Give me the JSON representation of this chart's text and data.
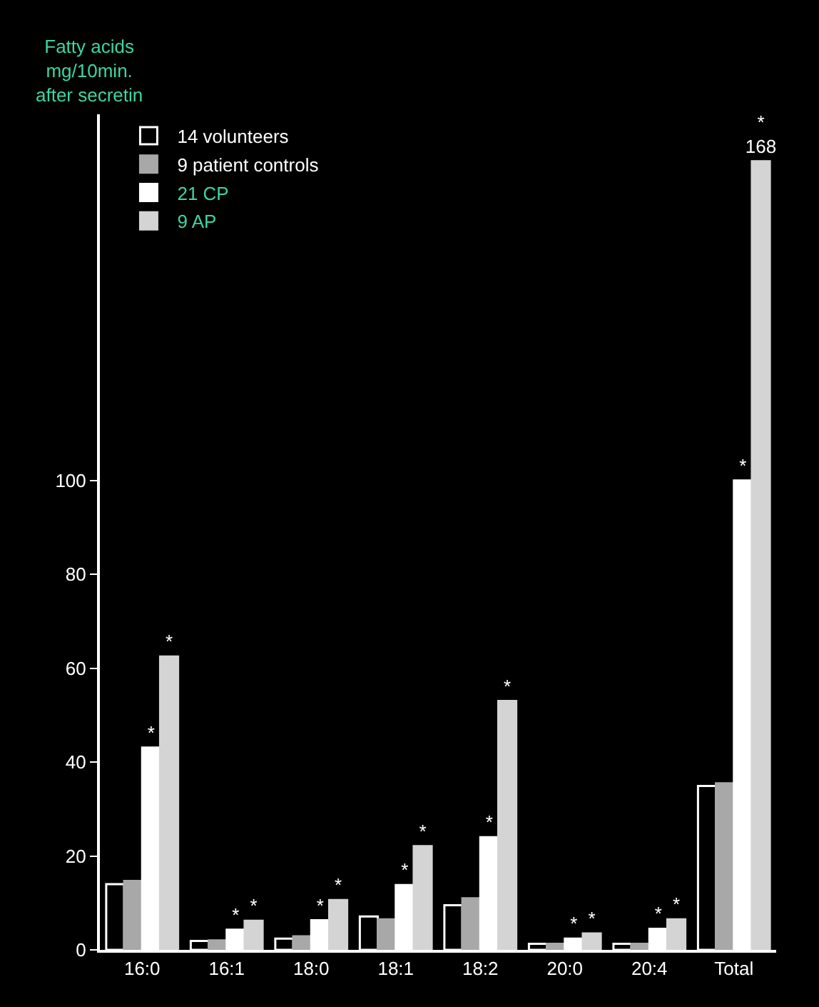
{
  "chart_data": {
    "type": "bar",
    "ylabel": "Fatty acids\nmg/10min.\nafter secretin",
    "categories": [
      "16:0",
      "16:1",
      "18:0",
      "18:1",
      "18:2",
      "20:0",
      "20:4",
      "Total"
    ],
    "series": [
      {
        "name": "14 volunteers",
        "color": "#ffffff",
        "values": [
          14.0,
          1.9,
          2.4,
          7.1,
          9.5,
          1.3,
          1.3,
          34.9
        ]
      },
      {
        "name": "9 patient controls",
        "color": "#a8a8a8",
        "values": [
          14.7,
          2.0,
          2.9,
          6.5,
          11.0,
          1.3,
          1.3,
          35.5
        ]
      },
      {
        "name": "21 CP",
        "color": "#ffffff",
        "values": [
          43.1,
          4.3,
          6.3,
          13.8,
          24.0,
          2.4,
          4.5,
          100
        ],
        "value_labels": [
          "*",
          "*",
          "*",
          "*",
          "*",
          "*",
          "*",
          "*"
        ]
      },
      {
        "name": "9 AP",
        "color": "#d4d4d4",
        "values": [
          62.5,
          6.2,
          10.6,
          22.1,
          53.0,
          3.5,
          6.5,
          168
        ],
        "value_labels": [
          "*",
          "*",
          "*",
          "*",
          "*",
          "*",
          "*",
          "*\n168"
        ]
      }
    ],
    "ylim": [
      0,
      178
    ],
    "yticks": [
      0,
      20,
      40,
      60,
      80,
      100
    ],
    "legend": "top left",
    "grid": false
  }
}
